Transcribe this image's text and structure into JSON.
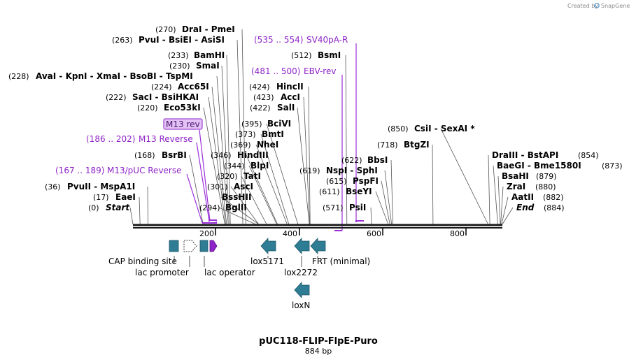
{
  "credit": {
    "created_by": "Created by",
    "brand": "SnapGene",
    "brand_color": "#4a90c8"
  },
  "map": {
    "title": "pUC118-FLIP-FlpE-Puro",
    "length_label": "884 bp",
    "sequence_length": 884,
    "axis_ticks": [
      {
        "value": 200,
        "label": "200"
      },
      {
        "value": 400,
        "label": "400"
      },
      {
        "value": 600,
        "label": "600"
      },
      {
        "value": 800,
        "label": "800"
      }
    ],
    "colors": {
      "backbone": "#1a1a1a",
      "leader": "#555555",
      "primer": "#8e24c8",
      "primer_line": "#9b30d9",
      "feature": "#2e7d94",
      "highlight_fill": "#e3c3f5",
      "highlight_border": "#8e24c8"
    }
  },
  "sites": [
    {
      "id": "start",
      "pos": "(0)",
      "name": "Start",
      "italic": true,
      "site": 0
    },
    {
      "id": "eaei",
      "pos": "(17)",
      "name": "EaeI",
      "site": 17
    },
    {
      "id": "pvuii",
      "pos": "(36)",
      "name": "PvuII  -  MspA1I",
      "site": 36
    },
    {
      "id": "bsrbi",
      "pos": "(168)",
      "name": "BsrBI",
      "site": 168
    },
    {
      "id": "eco53ki",
      "pos": "(220)",
      "name": "Eco53kI",
      "site": 220
    },
    {
      "id": "saci",
      "pos": "(222)",
      "name": "SacI  -  BsiHKAI",
      "site": 222
    },
    {
      "id": "acc65i",
      "pos": "(224)",
      "name": "Acc65I",
      "site": 224
    },
    {
      "id": "avai",
      "pos": "(228)",
      "name": "AvaI  -  KpnI  -  XmaI  -  BsoBI  -  TspMI",
      "site": 228
    },
    {
      "id": "smai",
      "pos": "(230)",
      "name": "SmaI",
      "site": 230
    },
    {
      "id": "bamhi",
      "pos": "(233)",
      "name": "BamHI",
      "site": 233
    },
    {
      "id": "pvui",
      "pos": "(263)",
      "name": "PvuI  -  BsiEI  -  AsiSI",
      "site": 263
    },
    {
      "id": "drai",
      "pos": "(270)",
      "name": "DraI  -  PmeI",
      "site": 270
    },
    {
      "id": "bglii",
      "pos": "(294)",
      "name": "BglII",
      "site": 294
    },
    {
      "id": "bsshii",
      "pos": "",
      "name": "BssHII",
      "site": 301
    },
    {
      "id": "asci",
      "pos": "(301)",
      "name": "AscI",
      "site": 301
    },
    {
      "id": "tati",
      "pos": "(320)",
      "name": "TatI",
      "site": 320
    },
    {
      "id": "blpi",
      "pos": "(344)",
      "name": "BlpI",
      "site": 344
    },
    {
      "id": "hindiii",
      "pos": "(346)",
      "name": "HindIII",
      "site": 346
    },
    {
      "id": "nhei",
      "pos": "(369)",
      "name": "NheI",
      "site": 369
    },
    {
      "id": "bmti",
      "pos": "(373)",
      "name": "BmtI",
      "site": 373
    },
    {
      "id": "bcivi",
      "pos": "(395)",
      "name": "BciVI",
      "site": 395
    },
    {
      "id": "sali",
      "pos": "(422)",
      "name": "SalI",
      "site": 422
    },
    {
      "id": "acci",
      "pos": "(423)",
      "name": "AccI",
      "site": 423
    },
    {
      "id": "hincii",
      "pos": "(424)",
      "name": "HincII",
      "site": 424
    },
    {
      "id": "bsmi",
      "pos": "(512)",
      "name": "BsmI",
      "site": 512
    },
    {
      "id": "psii",
      "pos": "(571)",
      "name": "PsiI",
      "site": 571
    },
    {
      "id": "bseyi",
      "pos": "(611)",
      "name": "BseYI",
      "site": 611
    },
    {
      "id": "pspfi",
      "pos": "(615)",
      "name": "PspFI",
      "site": 615
    },
    {
      "id": "nspi",
      "pos": "(619)",
      "name": "NspI  -  SphI",
      "site": 619
    },
    {
      "id": "bbsi",
      "pos": "(622)",
      "name": "BbsI",
      "site": 622
    },
    {
      "id": "btgzi",
      "pos": "(718)",
      "name": "BtgZI",
      "site": 718
    },
    {
      "id": "csii",
      "pos": "(850)",
      "name": "CsiI  -  SexAI *",
      "site": 850
    },
    {
      "id": "draiii",
      "pos": "(854)",
      "name": "DraIII  -  BstAPI",
      "site": 854
    },
    {
      "id": "baegi",
      "pos": "(873)",
      "name": "BaeGI  -  Bme1580I",
      "site": 873
    },
    {
      "id": "bsahi",
      "pos": "(879)",
      "name": "BsaHI",
      "site": 879
    },
    {
      "id": "zrai",
      "pos": "(880)",
      "name": "ZraI",
      "site": 880
    },
    {
      "id": "aatii",
      "pos": "(882)",
      "name": "AatII",
      "site": 882
    },
    {
      "id": "end",
      "pos": "(884)",
      "name": "End",
      "italic": true,
      "site": 884
    }
  ],
  "primers": [
    {
      "id": "m13-puc-reverse",
      "range": "(167 .. 189)",
      "name": "M13/pUC Reverse",
      "start": 167,
      "end": 189
    },
    {
      "id": "m13-reverse",
      "range": "(186 .. 202)",
      "name": "M13 Reverse",
      "start": 186,
      "end": 202
    },
    {
      "id": "m13-rev",
      "range": "",
      "name": "M13 rev",
      "highlighted": true,
      "start": 186,
      "end": 203
    },
    {
      "id": "ebv-rev",
      "range": "(481 .. 500)",
      "name": "EBV-rev",
      "start": 481,
      "end": 500
    },
    {
      "id": "sv40pa-r",
      "range": "(535 .. 554)",
      "name": "SV40pA-R",
      "start": 535,
      "end": 554
    }
  ],
  "features": [
    {
      "id": "cap-binding-site",
      "name": "CAP binding site",
      "type": "box"
    },
    {
      "id": "lac-promoter",
      "name": "lac promoter",
      "type": "dotted-arrow"
    },
    {
      "id": "lac-operator",
      "name": "lac operator",
      "type": "box"
    },
    {
      "id": "lox5171",
      "name": "lox5171",
      "type": "arrow-left"
    },
    {
      "id": "lox2272",
      "name": "lox2272",
      "type": "arrow-left"
    },
    {
      "id": "frt-minimal",
      "name": "FRT (minimal)",
      "type": "arrow-left"
    },
    {
      "id": "loxn",
      "name": "loxN",
      "type": "arrow-left"
    }
  ]
}
